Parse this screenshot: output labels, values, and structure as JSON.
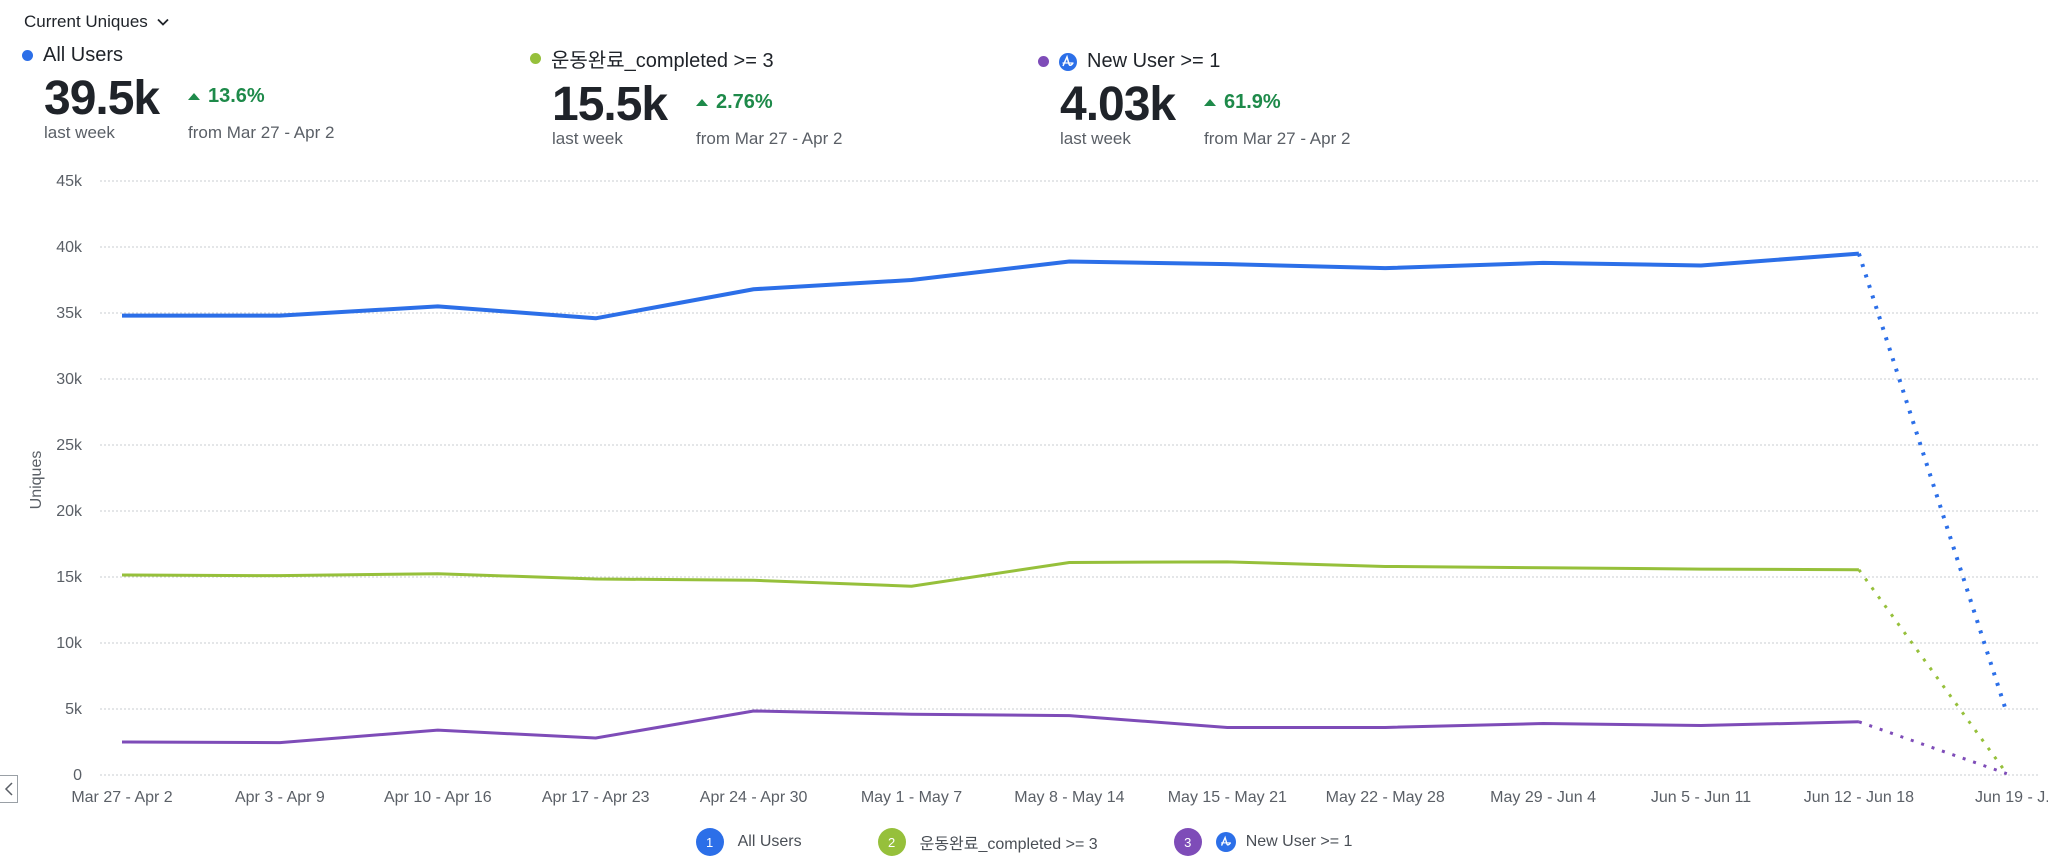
{
  "metric_selector": {
    "label": "Current Uniques",
    "icon": "chevron-down-icon"
  },
  "kpis": [
    {
      "name": "All Users",
      "color": "#2c6fe8",
      "badge": null,
      "value": "39.5k",
      "value_caption": "last week",
      "delta": "13.6%",
      "delta_direction": "up",
      "from_text": "from Mar 27 - Apr 2"
    },
    {
      "name": "운동완료_completed >= 3",
      "color": "#96c03b",
      "badge": null,
      "value": "15.5k",
      "value_caption": "last week",
      "delta": "2.76%",
      "delta_direction": "up",
      "from_text": "from Mar 27 - Apr 2"
    },
    {
      "name": "New User >= 1",
      "color": "#7e4cb8",
      "badge": "amplitude-logo-icon",
      "value": "4.03k",
      "value_caption": "last week",
      "delta": "61.9%",
      "delta_direction": "up",
      "from_text": "from Mar 27 - Apr 2"
    }
  ],
  "colors": {
    "positive": "#1e8a4a",
    "grid": "#c9cdd2",
    "axis_text": "#5a5f66"
  },
  "chart_data": {
    "type": "line",
    "title": "",
    "xlabel": "",
    "ylabel": "Uniques",
    "ylim": [
      0,
      45000
    ],
    "yticks": [
      0,
      5000,
      10000,
      15000,
      20000,
      25000,
      30000,
      35000,
      40000,
      45000
    ],
    "ytick_labels": [
      "0",
      "5k",
      "10k",
      "15k",
      "20k",
      "25k",
      "30k",
      "35k",
      "40k",
      "45k"
    ],
    "grid": true,
    "grid_style": "dotted-horizontal",
    "categories": [
      "Mar 27 - Apr 2",
      "Apr 3 - Apr 9",
      "Apr 10 - Apr 16",
      "Apr 17 - Apr 23",
      "Apr 24 - Apr 30",
      "May 1 - May 7",
      "May 8 - May 14",
      "May 15 - May 21",
      "May 22 - May 28",
      "May 29 - Jun 4",
      "Jun 5 - Jun 11",
      "Jun 12 - Jun 18",
      "Jun 19 - J..."
    ],
    "incomplete_last_period": true,
    "legend_position": "bottom-center",
    "series": [
      {
        "index": "1",
        "name": "All Users",
        "color": "#2c6fe8",
        "values": [
          34800,
          34800,
          35500,
          34600,
          36800,
          37500,
          38900,
          38700,
          38400,
          38800,
          38600,
          39500,
          4700
        ]
      },
      {
        "index": "2",
        "name": "운동완료_completed >= 3",
        "color": "#96c03b",
        "values": [
          15150,
          15100,
          15250,
          14850,
          14750,
          14300,
          16100,
          16150,
          15800,
          15700,
          15600,
          15550,
          100
        ]
      },
      {
        "index": "3",
        "name": "New User >= 1",
        "color": "#7e4cb8",
        "badge": "amplitude-logo-icon",
        "values": [
          2500,
          2450,
          3400,
          2800,
          4850,
          4600,
          4500,
          3600,
          3600,
          3900,
          3750,
          4030,
          100
        ]
      }
    ]
  }
}
